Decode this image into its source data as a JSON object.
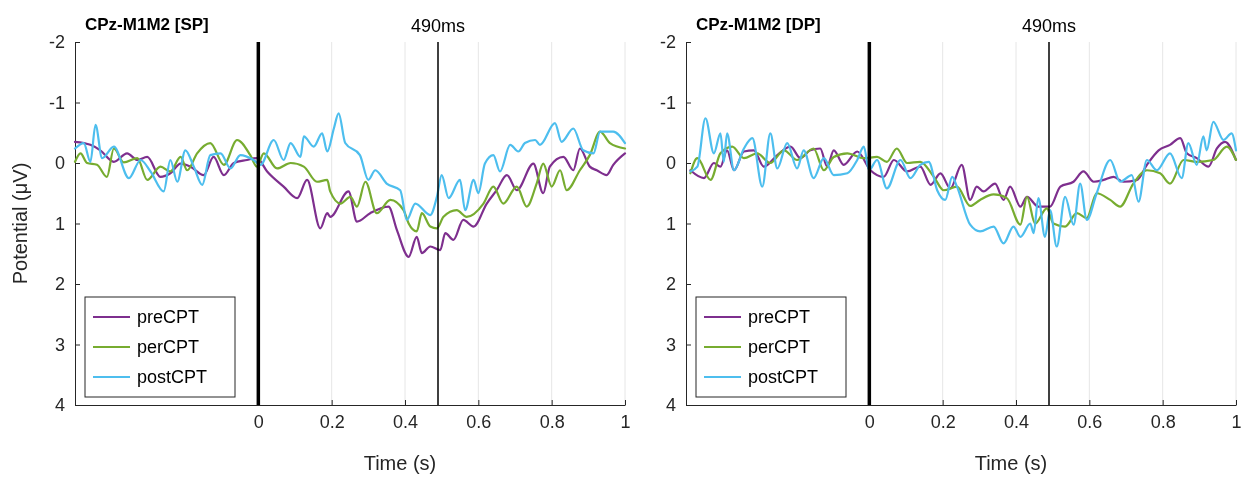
{
  "chart_data": [
    {
      "type": "line",
      "title": "CPz-M1M2 [SP]",
      "xlabel": "Time (s)",
      "ylabel": "Potential (μV)",
      "xlim": [
        -0.5,
        1
      ],
      "xticks": [
        0,
        0.2,
        0.4,
        0.6,
        0.8,
        1
      ],
      "ylim": [
        4,
        -2
      ],
      "yticks": [
        -2,
        -1,
        0,
        1,
        2,
        3,
        4
      ],
      "grid": "x",
      "legend": "bottom left",
      "line_style": "solid",
      "marker": "none",
      "ref_lines": [
        {
          "axis": "x",
          "value": 0,
          "label": null,
          "color": "#000000"
        },
        {
          "axis": "x",
          "value": 0.49,
          "label": "490ms",
          "color": "#000000"
        }
      ],
      "series": [
        {
          "name": "preCPT",
          "color": "#7e2f8e",
          "x": [
            -0.5,
            -0.458,
            -0.431,
            -0.394,
            -0.358,
            -0.33,
            -0.303,
            -0.267,
            -0.24,
            -0.212,
            -0.185,
            -0.149,
            -0.122,
            -0.094,
            -0.067,
            -0.031,
            -0.004,
            0.024,
            0.069,
            0.106,
            0.133,
            0.169,
            0.188,
            0.196,
            0.246,
            0.269,
            0.305,
            0.355,
            0.378,
            0.41,
            0.432,
            0.446,
            0.469,
            0.496,
            0.51,
            0.532,
            0.559,
            0.587,
            0.623,
            0.65,
            0.678,
            0.705,
            0.75,
            0.777,
            0.795,
            0.832,
            0.859,
            0.877,
            0.904,
            0.923,
            0.95,
            0.968,
            1.0
          ],
          "values": [
            -0.35,
            -0.3,
            -0.21,
            -0.02,
            -0.16,
            -0.05,
            -0.1,
            0.23,
            0.17,
            0.01,
            0.06,
            0.2,
            -0.1,
            0.2,
            0,
            -0.05,
            -0.08,
            0.14,
            0.39,
            0.58,
            0.28,
            1.08,
            0.83,
            0.89,
            0.47,
            0.97,
            0.83,
            0.72,
            1.11,
            1.55,
            1.22,
            1.49,
            1.38,
            1.44,
            1.16,
            1.27,
            0.94,
            1.05,
            0.67,
            0.45,
            0.2,
            0.45,
            0.01,
            0.5,
            0.06,
            -0.1,
            0.12,
            -0.24,
            0.06,
            0.12,
            0.2,
            0.03,
            -0.16
          ]
        },
        {
          "name": "perCPT",
          "color": "#77ac30",
          "x": [
            -0.5,
            -0.485,
            -0.467,
            -0.44,
            -0.413,
            -0.394,
            -0.367,
            -0.33,
            -0.303,
            -0.267,
            -0.24,
            -0.212,
            -0.194,
            -0.167,
            -0.131,
            -0.094,
            -0.058,
            -0.022,
            -0.004,
            0.015,
            0.051,
            0.088,
            0.124,
            0.16,
            0.188,
            0.196,
            0.224,
            0.251,
            0.269,
            0.292,
            0.323,
            0.36,
            0.396,
            0.41,
            0.432,
            0.446,
            0.469,
            0.487,
            0.505,
            0.541,
            0.568,
            0.614,
            0.641,
            0.668,
            0.705,
            0.732,
            0.759,
            0.777,
            0.8,
            0.823,
            0.841,
            0.877,
            0.904,
            0.932,
            0.959,
            1.0
          ],
          "values": [
            -0.02,
            -0.16,
            0,
            0.03,
            0.23,
            -0.24,
            -0.01,
            -0.08,
            0.28,
            0.06,
            0.14,
            -0.1,
            0.12,
            -0.16,
            -0.33,
            0.03,
            -0.38,
            -0.13,
            0.06,
            -0.16,
            0.09,
            0,
            0.06,
            0.31,
            0.28,
            0.47,
            0.67,
            0.56,
            0.72,
            0.31,
            0.83,
            0.61,
            0.78,
            1.0,
            1.13,
            0.83,
            1.05,
            1.08,
            0.89,
            0.78,
            0.89,
            0.67,
            0.39,
            0.67,
            0.39,
            0.72,
            0.34,
            0.01,
            0.39,
            0.12,
            0.45,
            0.12,
            -0.13,
            -0.52,
            -0.33,
            -0.24
          ]
        },
        {
          "name": "postCPT",
          "color": "#4dbeee",
          "x": [
            -0.5,
            -0.476,
            -0.458,
            -0.444,
            -0.426,
            -0.394,
            -0.353,
            -0.321,
            -0.294,
            -0.258,
            -0.24,
            -0.221,
            -0.199,
            -0.176,
            -0.153,
            -0.131,
            -0.103,
            -0.076,
            -0.049,
            -0.013,
            0.006,
            0.042,
            0.069,
            0.088,
            0.115,
            0.124,
            0.151,
            0.174,
            0.188,
            0.206,
            0.219,
            0.237,
            0.277,
            0.3,
            0.319,
            0.35,
            0.387,
            0.405,
            0.428,
            0.469,
            0.487,
            0.5,
            0.519,
            0.55,
            0.564,
            0.587,
            0.6,
            0.618,
            0.641,
            0.659,
            0.687,
            0.709,
            0.727,
            0.755,
            0.768,
            0.809,
            0.827,
            0.859,
            0.886,
            0.914,
            0.932,
            0.968,
            1.0
          ],
          "values": [
            -0.24,
            -0.33,
            -0.02,
            -0.63,
            -0.08,
            -0.27,
            0.25,
            -0.05,
            0.14,
            0.47,
            -0.05,
            0.31,
            -0.21,
            0.06,
            0.36,
            -0.13,
            -0.16,
            0.09,
            -0.13,
            -0.05,
            0.03,
            -0.38,
            -0.05,
            -0.33,
            -0.1,
            -0.44,
            -0.27,
            -0.49,
            -0.19,
            -0.57,
            -0.82,
            -0.33,
            -0.13,
            0.28,
            0.12,
            0.34,
            0.45,
            0.94,
            0.67,
            0.86,
            0.56,
            0.2,
            0.58,
            0.28,
            0.78,
            0.28,
            0.5,
            0.01,
            -0.13,
            0.14,
            -0.3,
            -0.19,
            -0.33,
            -0.38,
            -0.3,
            -0.66,
            -0.35,
            -0.57,
            -0.21,
            -0.16,
            -0.52,
            -0.52,
            -0.33
          ]
        }
      ]
    },
    {
      "type": "line",
      "title": "CPz-M1M2 [DP]",
      "xlabel": "Time (s)",
      "xlim": [
        -0.5,
        1
      ],
      "xticks": [
        0,
        0.2,
        0.4,
        0.6,
        0.8,
        1
      ],
      "ylim": [
        4,
        -2
      ],
      "yticks": [
        -2,
        -1,
        0,
        1,
        2,
        3,
        4
      ],
      "grid": "x",
      "legend": "bottom left",
      "line_style": "solid",
      "marker": "none",
      "ref_lines": [
        {
          "axis": "x",
          "value": 0,
          "label": null,
          "color": "#000000"
        },
        {
          "axis": "x",
          "value": 0.49,
          "label": "490ms",
          "color": "#000000"
        }
      ],
      "series": [
        {
          "name": "preCPT",
          "color": "#7e2f8e",
          "x": [
            -0.488,
            -0.451,
            -0.424,
            -0.406,
            -0.388,
            -0.369,
            -0.342,
            -0.315,
            -0.288,
            -0.251,
            -0.215,
            -0.188,
            -0.161,
            -0.134,
            -0.115,
            -0.097,
            -0.07,
            -0.033,
            0.003,
            0.039,
            0.067,
            0.103,
            0.139,
            0.167,
            0.194,
            0.221,
            0.252,
            0.275,
            0.293,
            0.311,
            0.343,
            0.366,
            0.384,
            0.412,
            0.43,
            0.461,
            0.493,
            0.521,
            0.557,
            0.584,
            0.612,
            0.639,
            0.666,
            0.693,
            0.73,
            0.757,
            0.789,
            0.82,
            0.848,
            0.866,
            0.893,
            0.925,
            0.948,
            0.97,
            1.0
          ],
          "values": [
            0.12,
            0.25,
            0,
            0.06,
            -0.21,
            0.12,
            -0.19,
            -0.21,
            0.06,
            -0.13,
            -0.27,
            -0.08,
            -0.21,
            -0.24,
            0.06,
            -0.21,
            0.03,
            -0.19,
            0.12,
            0.23,
            -0.05,
            0.14,
            0.06,
            0.36,
            0.17,
            0.42,
            0.03,
            0.61,
            0.39,
            0.47,
            0.34,
            0.61,
            0.39,
            0.72,
            0.56,
            0.72,
            0.72,
            0.39,
            0.31,
            0.14,
            0.31,
            0.28,
            0.23,
            0.31,
            0.28,
            0.03,
            -0.21,
            -0.3,
            -0.41,
            -0.16,
            -0.08,
            0.06,
            -0.24,
            -0.35,
            -0.05
          ]
        },
        {
          "name": "perCPT",
          "color": "#77ac30",
          "x": [
            -0.488,
            -0.469,
            -0.433,
            -0.406,
            -0.374,
            -0.342,
            -0.306,
            -0.27,
            -0.233,
            -0.197,
            -0.152,
            -0.124,
            -0.097,
            -0.06,
            -0.015,
            0.021,
            0.048,
            0.075,
            0.103,
            0.139,
            0.176,
            0.203,
            0.239,
            0.275,
            0.302,
            0.339,
            0.375,
            0.412,
            0.43,
            0.452,
            0.484,
            0.502,
            0.534,
            0.566,
            0.593,
            0.62,
            0.657,
            0.684,
            0.72,
            0.757,
            0.793,
            0.82,
            0.857,
            0.893,
            0.938,
            0.975,
            1.0
          ],
          "values": [
            0.17,
            -0.08,
            0.28,
            -0.16,
            -0.27,
            -0.08,
            -0.16,
            0,
            -0.21,
            -0.05,
            -0.24,
            0.12,
            -0.1,
            -0.16,
            -0.08,
            -0.1,
            -0.02,
            -0.24,
            0,
            -0.02,
            0.23,
            0.45,
            0.39,
            0.71,
            0.61,
            0.52,
            0.58,
            1.02,
            0.56,
            1.0,
            0.75,
            1.0,
            1.05,
            0.83,
            0.91,
            0.5,
            0.61,
            0.72,
            0.34,
            0.12,
            0.17,
            0.34,
            -0.05,
            -0.02,
            -0.05,
            -0.27,
            -0.05
          ]
        },
        {
          "name": "postCPT",
          "color": "#4dbeee",
          "x": [
            -0.488,
            -0.469,
            -0.447,
            -0.424,
            -0.406,
            -0.397,
            -0.388,
            -0.369,
            -0.342,
            -0.319,
            -0.292,
            -0.27,
            -0.251,
            -0.224,
            -0.197,
            -0.179,
            -0.152,
            -0.124,
            -0.097,
            -0.06,
            -0.033,
            -0.015,
            -0.001,
            0.021,
            0.048,
            0.085,
            0.112,
            0.139,
            0.162,
            0.185,
            0.207,
            0.226,
            0.239,
            0.275,
            0.302,
            0.339,
            0.366,
            0.393,
            0.412,
            0.439,
            0.448,
            0.461,
            0.479,
            0.493,
            0.511,
            0.534,
            0.557,
            0.575,
            0.593,
            0.62,
            0.657,
            0.684,
            0.716,
            0.734,
            0.757,
            0.784,
            0.82,
            0.852,
            0.87,
            0.893,
            0.911,
            0.92,
            0.938,
            0.966,
            0.988,
            1.0
          ],
          "values": [
            0.14,
            0.06,
            -0.74,
            -0.16,
            -0.49,
            -0.02,
            -0.49,
            0.12,
            -0.24,
            -0.41,
            0.39,
            -0.49,
            0.09,
            -0.33,
            0.09,
            -0.21,
            0.25,
            -0.08,
            0.2,
            0.17,
            -0.05,
            -0.27,
            0.12,
            -0.05,
            0.42,
            -0.05,
            0.25,
            0.03,
            -0.02,
            0.45,
            0.61,
            0.23,
            0.39,
            1.02,
            1.13,
            1.05,
            1.33,
            1.05,
            1.22,
            1.0,
            1.16,
            0.58,
            1.22,
            0.78,
            1.38,
            0.56,
            1.02,
            0.34,
            0.94,
            0.5,
            -0.05,
            0.31,
            0.2,
            0.64,
            -0.05,
            0.12,
            -0.16,
            0.25,
            -0.33,
            0.03,
            -0.44,
            -0.21,
            -0.68,
            -0.38,
            -0.49,
            -0.21
          ]
        }
      ]
    }
  ]
}
